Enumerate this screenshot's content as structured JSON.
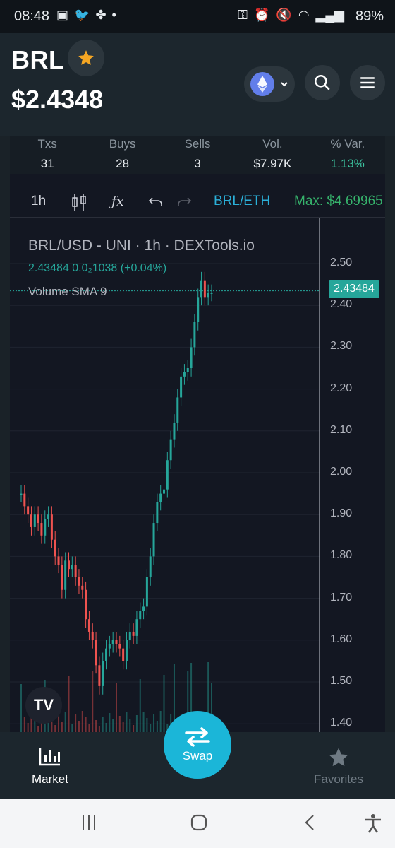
{
  "status_bar": {
    "time": "08:48",
    "battery": "89%"
  },
  "header": {
    "token": "BRL",
    "price": "$2.4348",
    "star_color": "#f5a623",
    "chain_icon": "ethereum-icon"
  },
  "stats": [
    {
      "label": "Txs",
      "value": "31"
    },
    {
      "label": "Buys",
      "value": "28"
    },
    {
      "label": "Sells",
      "value": "3"
    },
    {
      "label": "Vol.",
      "value": "$7.97K"
    },
    {
      "label": "% Var.",
      "value": "1.13%"
    }
  ],
  "toolbar": {
    "interval": "1h",
    "pair": "BRL/ETH",
    "max": "Max: $4.69965"
  },
  "chart": {
    "title": "BRL/USD - UNI · 1h · DEXTools.io",
    "ohlc": "2.43484  0.0₂1038 (+0.04%)",
    "volume_label": "Volume SMA 9",
    "last_price": "2.43484",
    "y_ticks": [
      "2.50",
      "2.40",
      "2.30",
      "2.20",
      "2.10",
      "2.00",
      "1.90",
      "1.80",
      "1.70",
      "1.60",
      "1.50",
      "1.40"
    ],
    "tv_logo": "TV"
  },
  "chart_data": {
    "type": "candlestick",
    "ylim": [
      1.4,
      2.52
    ],
    "close_series": [
      1.95,
      1.92,
      1.9,
      1.87,
      1.9,
      1.88,
      1.85,
      1.89,
      1.9,
      1.84,
      1.8,
      1.78,
      1.72,
      1.79,
      1.77,
      1.78,
      1.75,
      1.73,
      1.72,
      1.65,
      1.62,
      1.6,
      1.54,
      1.49,
      1.55,
      1.58,
      1.59,
      1.6,
      1.59,
      1.58,
      1.55,
      1.6,
      1.62,
      1.61,
      1.65,
      1.67,
      1.68,
      1.75,
      1.8,
      1.88,
      1.93,
      1.95,
      1.96,
      2.03,
      2.08,
      2.12,
      2.18,
      2.23,
      2.24,
      2.25,
      2.3,
      2.36,
      2.42,
      2.46,
      2.42,
      2.43,
      2.43
    ],
    "last": 2.43484
  },
  "nav": {
    "market": "Market",
    "swap": "Swap",
    "favorites": "Favorites"
  },
  "colors": {
    "up": "#26a69a",
    "down": "#ef5350",
    "accent": "#1bb6d8"
  }
}
